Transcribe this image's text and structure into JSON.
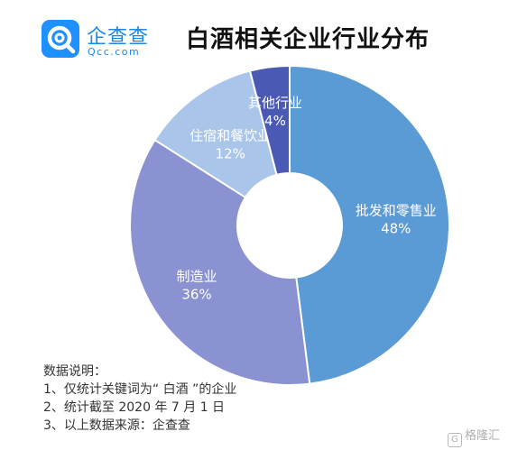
{
  "brand": {
    "logo_name": "企查查",
    "logo_domain": "Qcc.com"
  },
  "title": "白酒相关企业行业分布",
  "chart_data": {
    "type": "pie",
    "donut": true,
    "title": "白酒相关企业行业分布",
    "slices": [
      {
        "label": "批发和零售业",
        "value": 48,
        "value_label": "48%",
        "color": "#5b9bd5"
      },
      {
        "label": "制造业",
        "value": 36,
        "value_label": "36%",
        "color": "#8a92d2"
      },
      {
        "label": "住宿和餐饮业",
        "value": 12,
        "value_label": "12%",
        "color": "#a9c5e9"
      },
      {
        "label": "其他行业",
        "value": 4,
        "value_label": "4%",
        "color": "#4a59b4"
      }
    ]
  },
  "notes": {
    "heading": "数据说明：",
    "lines": [
      "1、仅统计关键词为“ 白酒 ”的企业",
      "2、统计截至 2020 年 7 月 1 日",
      "3、以上数据来源：企查查"
    ]
  },
  "watermark": {
    "glyph": "G",
    "text": "格隆汇"
  }
}
